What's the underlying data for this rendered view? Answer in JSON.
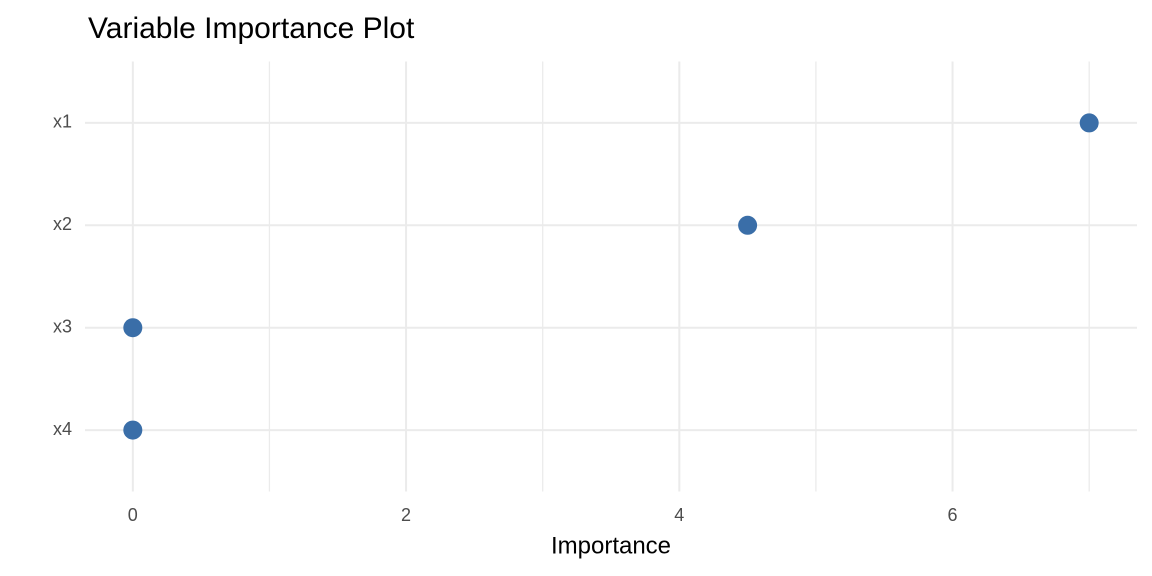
{
  "chart_data": {
    "type": "dot",
    "title": "Variable Importance Plot",
    "x_label": "Importance",
    "categories": [
      "x1",
      "x2",
      "x3",
      "x4"
    ],
    "values": [
      7.0,
      4.5,
      0,
      0
    ],
    "color": "#3a6ea8",
    "xlim": [
      -0.35,
      7.35
    ],
    "xticks": [
      0,
      2,
      4,
      6
    ],
    "minor_xticks": [
      1,
      3,
      5,
      7
    ],
    "grid": true
  }
}
